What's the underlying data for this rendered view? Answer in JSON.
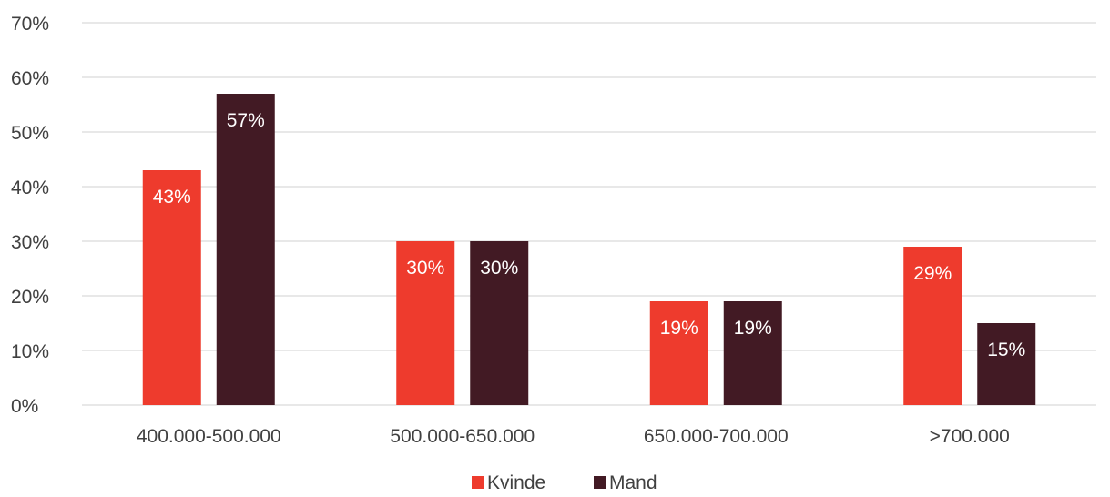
{
  "chart_data": {
    "type": "bar",
    "categories": [
      "400.000-500.000",
      "500.000-650.000",
      "650.000-700.000",
      ">700.000"
    ],
    "series": [
      {
        "name": "Kvinde",
        "color": "#ee3b2d",
        "values": [
          43,
          30,
          19,
          29
        ],
        "labels": [
          "43%",
          "30%",
          "19%",
          "29%"
        ]
      },
      {
        "name": "Mand",
        "color": "#421a24",
        "values": [
          57,
          30,
          19,
          15
        ],
        "labels": [
          "57%",
          "30%",
          "19%",
          "15%"
        ]
      }
    ],
    "ylim": [
      0,
      70
    ],
    "yticks": [
      0,
      10,
      20,
      30,
      40,
      50,
      60,
      70
    ],
    "ytick_labels": [
      "0%",
      "10%",
      "20%",
      "30%",
      "40%",
      "50%",
      "60%",
      "70%"
    ],
    "grid": true,
    "legend": "bottom-center",
    "title": "",
    "xlabel": "",
    "ylabel": ""
  }
}
